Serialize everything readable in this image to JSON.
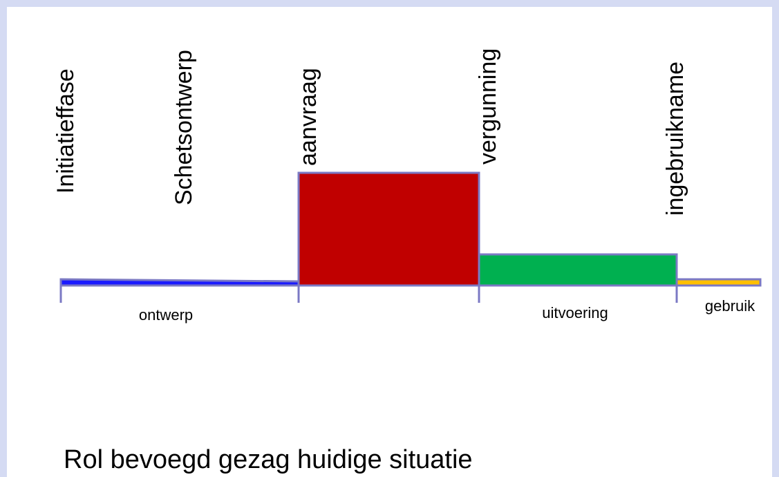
{
  "milestones": [
    "Initiatieffase",
    "Schetsontwerp",
    "aanvraag",
    "vergunning",
    "ingebruikname"
  ],
  "phases": [
    "ontwerp",
    "uitvoering",
    "gebruik"
  ],
  "title": "Rol bevoegd gezag huidige situatie"
}
